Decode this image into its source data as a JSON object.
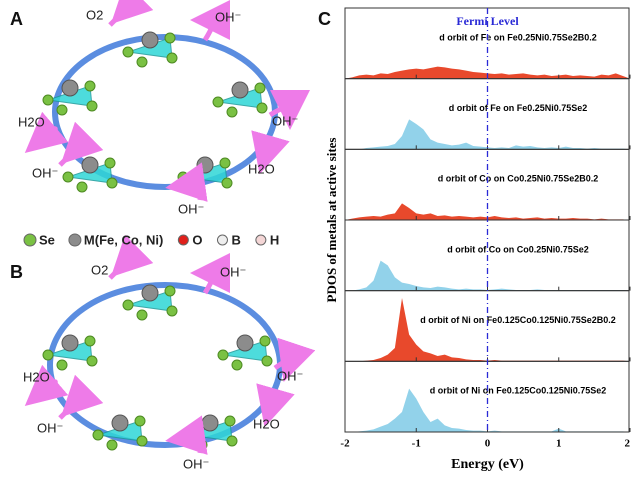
{
  "panels": {
    "a": {
      "label": "A",
      "species": [
        "O2",
        "OH⁻",
        "OH⁻",
        "H2O",
        "OH⁻",
        "H2O",
        "OH⁻"
      ]
    },
    "b": {
      "label": "B",
      "species": [
        "O2",
        "OH⁻",
        "OH⁻",
        "H2O",
        "OH⁻",
        "H2O",
        "OH⁻"
      ]
    },
    "legend": {
      "items": [
        {
          "name": "Se",
          "color": "#7ac143"
        },
        {
          "name": "M(Fe, Co, Ni)",
          "color": "#8c8c8c"
        },
        {
          "name": "O",
          "color": "#e0201b"
        },
        {
          "name": "B",
          "color": "#eeeeee"
        },
        {
          "name": "H",
          "color": "#f4d6d6"
        }
      ]
    }
  },
  "chart_data": {
    "type": "area",
    "title": "C",
    "annotation": "Fermi Level",
    "vline": 0,
    "xlabel": "Energy (eV)",
    "ylabel": "PDOS of metals at active sites",
    "xlim": [
      -2,
      2
    ],
    "xticks": [
      -2,
      -1,
      0,
      1,
      2
    ],
    "ylim": [
      0,
      1
    ],
    "x": [
      -2,
      -1.9,
      -1.8,
      -1.7,
      -1.6,
      -1.5,
      -1.4,
      -1.3,
      -1.2,
      -1.1,
      -1,
      -0.9,
      -0.8,
      -0.7,
      -0.6,
      -0.5,
      -0.4,
      -0.3,
      -0.2,
      -0.1,
      0,
      0.1,
      0.2,
      0.3,
      0.4,
      0.5,
      0.6,
      0.7,
      0.8,
      0.9,
      1,
      1.1,
      1.2,
      1.3,
      1.4,
      1.5,
      1.6,
      1.7,
      1.8,
      1.9,
      2
    ],
    "series": [
      {
        "name": "d orbit of Fe on Fe0.25Ni0.75Se2B0.2",
        "color": "#e8492c",
        "values": [
          0,
          0.02,
          0.05,
          0.06,
          0.05,
          0.08,
          0.07,
          0.1,
          0.12,
          0.14,
          0.15,
          0.14,
          0.16,
          0.18,
          0.17,
          0.15,
          0.14,
          0.12,
          0.1,
          0.09,
          0.08,
          0.07,
          0.08,
          0.06,
          0.07,
          0.08,
          0.06,
          0.05,
          0.06,
          0.04,
          0.05,
          0.06,
          0.04,
          0.05,
          0.04,
          0.03,
          0.06,
          0.05,
          0.08,
          0.04,
          0
        ]
      },
      {
        "name": "d orbit of Fe on Fe0.25Ni0.75Se2",
        "color": "#92d2ea",
        "values": [
          0,
          0,
          0,
          0.02,
          0.03,
          0.04,
          0.05,
          0.08,
          0.2,
          0.45,
          0.38,
          0.3,
          0.15,
          0.1,
          0.08,
          0.06,
          0.07,
          0.1,
          0.05,
          0.04,
          0.03,
          0.02,
          0.03,
          0.02,
          0.06,
          0.04,
          0.05,
          0.03,
          0.02,
          0.03,
          0.02,
          0.04,
          0.02,
          0.02,
          0.01,
          0.02,
          0.01,
          0.01,
          0.01,
          0.01,
          0
        ]
      },
      {
        "name": "d orbit of Co on Co0.25Ni0.75Se2B0.2",
        "color": "#e8492c",
        "values": [
          0,
          0.02,
          0.04,
          0.05,
          0.06,
          0.05,
          0.08,
          0.1,
          0.25,
          0.18,
          0.1,
          0.08,
          0.1,
          0.06,
          0.07,
          0.05,
          0.06,
          0.05,
          0.04,
          0.05,
          0.04,
          0.06,
          0.04,
          0.03,
          0.04,
          0.02,
          0.03,
          0.04,
          0.02,
          0.03,
          0.02,
          0.02,
          0.03,
          0.02,
          0.02,
          0.01,
          0.02,
          0.01,
          0.01,
          0.01,
          0
        ]
      },
      {
        "name": "d orbit of Co on Co0.25Ni0.75Se2",
        "color": "#92d2ea",
        "values": [
          0,
          0,
          0.02,
          0.05,
          0.15,
          0.45,
          0.38,
          0.2,
          0.12,
          0.1,
          0.07,
          0.05,
          0.04,
          0.06,
          0.05,
          0.03,
          0.02,
          0.03,
          0.02,
          0.02,
          0.01,
          0.02,
          0.03,
          0.02,
          0.01,
          0.01,
          0.01,
          0.02,
          0.01,
          0.01,
          0.01,
          0.01,
          0.01,
          0.01,
          0.01,
          0.01,
          0.01,
          0.01,
          0.01,
          0.01,
          0
        ]
      },
      {
        "name": "d orbit of Ni on Fe0.125Co0.125Ni0.75Se2B0.2",
        "color": "#e8492c",
        "values": [
          0,
          0,
          0,
          0.01,
          0.02,
          0.05,
          0.1,
          0.2,
          0.95,
          0.4,
          0.25,
          0.15,
          0.12,
          0.08,
          0.1,
          0.06,
          0.05,
          0.03,
          0.02,
          0.02,
          0.01,
          0.02,
          0.01,
          0.01,
          0.01,
          0.01,
          0.01,
          0.01,
          0.01,
          0.01,
          0.01,
          0.01,
          0.01,
          0.01,
          0.01,
          0.01,
          0.01,
          0.01,
          0.01,
          0.01,
          0
        ]
      },
      {
        "name": "d orbit of Ni on Fe0.125Co0.125Ni0.75Se2",
        "color": "#92d2ea",
        "values": [
          0,
          0,
          0.01,
          0.02,
          0.04,
          0.08,
          0.12,
          0.2,
          0.3,
          0.65,
          0.5,
          0.3,
          0.15,
          0.2,
          0.1,
          0.06,
          0.05,
          0.03,
          0.02,
          0.02,
          0.01,
          0.02,
          0.01,
          0.01,
          0.01,
          0.01,
          0.01,
          0.01,
          0.01,
          0.01,
          0.05,
          0.01,
          0.01,
          0.01,
          0.01,
          0.01,
          0.01,
          0.01,
          0.01,
          0.01,
          0
        ]
      }
    ]
  }
}
